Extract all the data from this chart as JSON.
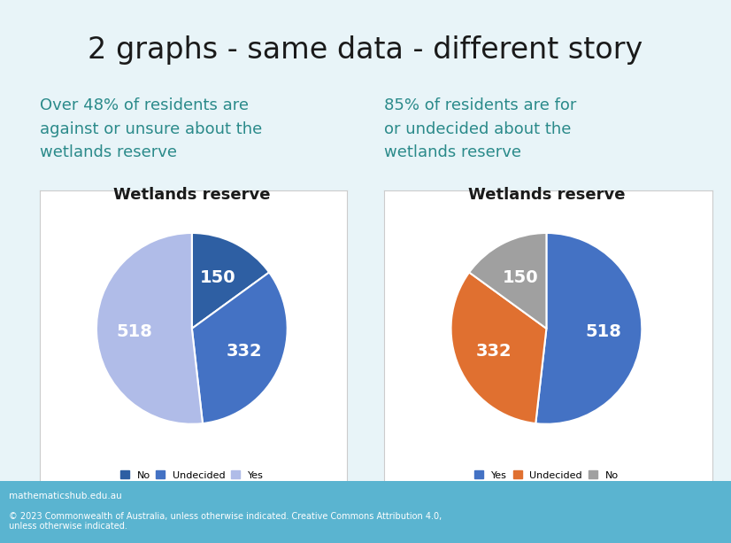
{
  "title": "2 graphs - same data - different story",
  "title_fontsize": 24,
  "title_color": "#1a1a1a",
  "background_color": "#e8f4f8",
  "subtitle1": "Over 48% of residents are\nagainst or unsure about the\nwetlands reserve",
  "subtitle2": "85% of residents are for\nor undecided about the\nwetlands reserve",
  "subtitle_color": "#2a8a8a",
  "subtitle_fontsize": 13,
  "pie_title": "Wetlands reserve",
  "pie_title_fontsize": 13,
  "chart1_values": [
    150,
    332,
    518
  ],
  "chart1_colors": [
    "#2e5fa3",
    "#4472c4",
    "#b0bce8"
  ],
  "chart1_labels": [
    "150",
    "332",
    "518"
  ],
  "chart1_startangle": 90,
  "chart1_legend_labels": [
    "No",
    "Undecided",
    "Yes"
  ],
  "chart1_legend_colors": [
    "#2e5fa3",
    "#4472c4",
    "#b0bce8"
  ],
  "chart2_values": [
    518,
    332,
    150
  ],
  "chart2_colors": [
    "#4472c4",
    "#e07030",
    "#a0a0a0"
  ],
  "chart2_labels": [
    "518",
    "332",
    "150"
  ],
  "chart2_startangle": 90,
  "chart2_legend_labels": [
    "Yes",
    "Undecided",
    "No"
  ],
  "chart2_legend_colors": [
    "#4472c4",
    "#e07030",
    "#a0a0a0"
  ],
  "label_fontsize": 14,
  "label_color": "white",
  "footer_bg": "#5ab4d0",
  "footer_text1": "mathematicshub.edu.au",
  "footer_text2": "© 2023 Commonwealth of Australia, unless otherwise indicated. Creative Commons Attribution 4.0,\nunless otherwise indicated.",
  "footer_fontsize": 7
}
